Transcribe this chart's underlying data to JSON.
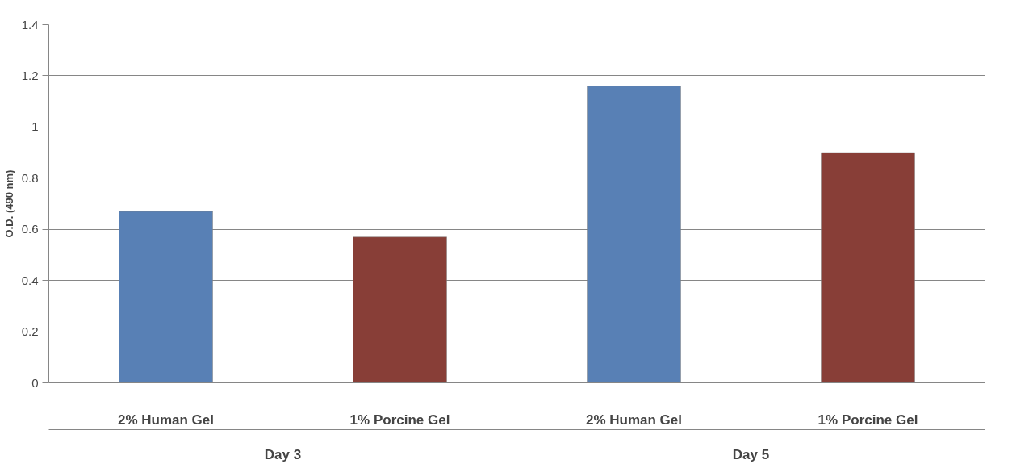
{
  "chart_data": {
    "type": "bar",
    "ylabel": "O.D. (490 nm)",
    "categories": [
      "2% Human Gel",
      "1% Porcine Gel",
      "2% Human Gel",
      "1% Porcine Gel"
    ],
    "values": [
      0.67,
      0.57,
      1.16,
      0.9
    ],
    "colors": [
      "#5880b5",
      "#883e37",
      "#5880b5",
      "#883e37"
    ],
    "ylim": [
      0,
      1.4
    ],
    "yticks": [
      0,
      0.2,
      0.4,
      0.6,
      0.8,
      1,
      1.2,
      1.4
    ],
    "annotations": [
      "Day 3",
      "Day 5"
    ],
    "grid": "y"
  }
}
